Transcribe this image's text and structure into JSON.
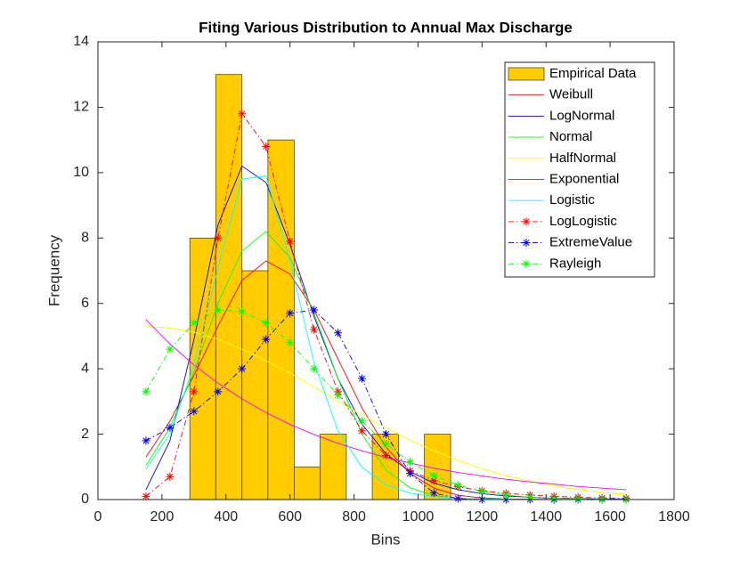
{
  "chart_data": {
    "type": "histogram",
    "title": "Fiting Various Distribution to Annual Max Discharge",
    "x_label": "Bins",
    "y_label": "Frequency",
    "xlim": [
      0,
      1800
    ],
    "ylim": [
      0,
      14
    ],
    "xticks": [
      0,
      200,
      400,
      600,
      800,
      1000,
      1200,
      1400,
      1600,
      1800
    ],
    "yticks": [
      0,
      2,
      4,
      6,
      8,
      10,
      12,
      14
    ],
    "legend": "northeast",
    "histogram": {
      "name": "Empirical Data",
      "color": "#ffcc00",
      "bins": [
        287,
        368,
        450,
        531,
        613,
        694,
        776,
        857,
        939,
        1020,
        1102
      ],
      "counts": [
        8,
        13,
        7,
        11,
        1,
        2,
        0,
        2,
        0,
        2
      ]
    },
    "x": [
      150,
      225,
      300,
      375,
      450,
      525,
      600,
      675,
      750,
      825,
      900,
      975,
      1050,
      1125,
      1200,
      1275,
      1350,
      1425,
      1500,
      1575,
      1650
    ],
    "series": [
      {
        "name": "Weibull",
        "color": "#ff0000",
        "line": "solid",
        "marker": "none",
        "values": [
          1.3,
          2.4,
          3.8,
          5.3,
          6.7,
          7.3,
          6.9,
          5.8,
          4.3,
          2.8,
          1.6,
          0.8,
          0.35,
          0.13,
          0.05,
          0.02,
          0.01,
          0,
          0,
          0,
          0
        ]
      },
      {
        "name": "LogNormal",
        "color": "#0000ff",
        "line": "solid",
        "marker": "none",
        "values": [
          0.3,
          1.8,
          4.9,
          8.4,
          10.2,
          9.7,
          7.8,
          5.6,
          3.7,
          2.3,
          1.4,
          0.85,
          0.5,
          0.3,
          0.18,
          0.11,
          0.07,
          0.04,
          0.03,
          0.02,
          0.01
        ]
      },
      {
        "name": "Normal",
        "color": "#00ff00",
        "line": "solid",
        "marker": "none",
        "values": [
          1.04,
          2.2,
          3.9,
          6.0,
          7.6,
          8.2,
          7.4,
          5.7,
          3.7,
          2.0,
          0.9,
          0.36,
          0.12,
          0.03,
          0.01,
          0,
          0,
          0,
          0,
          0,
          0
        ]
      },
      {
        "name": "HalfNormal",
        "color": "#ffff00",
        "line": "solid",
        "marker": "none",
        "values": [
          5.3,
          5.25,
          5.12,
          4.9,
          4.6,
          4.25,
          3.87,
          3.45,
          3.01,
          2.58,
          2.2,
          1.82,
          1.49,
          1.2,
          0.94,
          0.73,
          0.56,
          0.41,
          0.31,
          0.22,
          0.16
        ]
      },
      {
        "name": "Exponential",
        "color": "#ff00ff",
        "line": "solid",
        "marker": "none",
        "values": [
          5.5,
          4.76,
          4.12,
          3.56,
          3.08,
          2.66,
          2.3,
          1.99,
          1.72,
          1.49,
          1.29,
          1.12,
          0.96,
          0.83,
          0.72,
          0.62,
          0.54,
          0.47,
          0.4,
          0.35,
          0.3
        ]
      },
      {
        "name": "Logistic",
        "color": "#00ffff",
        "line": "solid",
        "marker": "none",
        "values": [
          0.93,
          2.0,
          4.1,
          7.1,
          9.8,
          9.9,
          7.3,
          4.2,
          2.1,
          0.99,
          0.45,
          0.2,
          0.09,
          0.04,
          0.02,
          0.01,
          0,
          0,
          0,
          0,
          0
        ]
      },
      {
        "name": "LogLogistic",
        "color": "#ff0000",
        "line": "dashdot",
        "marker": "star",
        "values": [
          0.1,
          0.7,
          3.3,
          8.0,
          11.8,
          10.8,
          7.9,
          5.2,
          3.3,
          2.1,
          1.35,
          0.88,
          0.58,
          0.39,
          0.27,
          0.19,
          0.14,
          0.1,
          0.07,
          0.05,
          0.04
        ]
      },
      {
        "name": "ExtremeValue",
        "color": "#0000ff",
        "line": "dashdot",
        "marker": "star",
        "values": [
          1.8,
          2.2,
          2.7,
          3.3,
          4.0,
          4.9,
          5.7,
          5.8,
          5.1,
          3.7,
          2.0,
          0.8,
          0.2,
          0.03,
          0,
          0,
          0,
          0,
          0,
          0,
          0
        ]
      },
      {
        "name": "Rayleigh",
        "color": "#00ff00",
        "line": "dashdot",
        "marker": "star",
        "values": [
          3.3,
          4.6,
          5.4,
          5.8,
          5.75,
          5.4,
          4.8,
          4.0,
          3.2,
          2.4,
          1.7,
          1.15,
          0.73,
          0.44,
          0.25,
          0.14,
          0.07,
          0.03,
          0.02,
          0.01,
          0
        ]
      }
    ]
  }
}
